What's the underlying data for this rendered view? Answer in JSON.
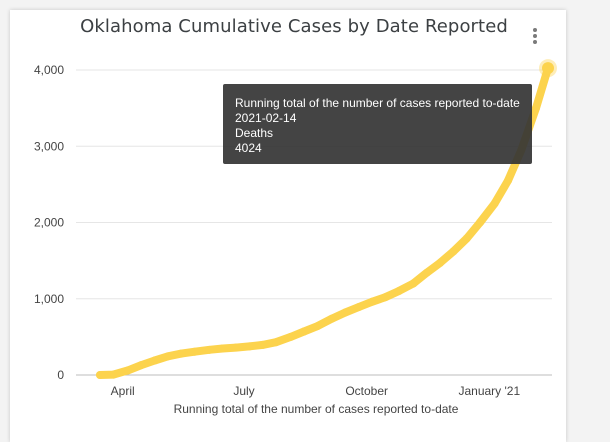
{
  "chart_data": {
    "type": "line",
    "title": "Oklahoma Cumulative Cases by Date Reported",
    "xlabel": "Running total of the number of cases reported to-date",
    "ylabel": "",
    "x_start": "2020-03-15",
    "x_end": "2021-02-14",
    "ylim": [
      0,
      4000
    ],
    "yticks": [
      0,
      1000,
      2000,
      3000,
      4000
    ],
    "ytick_labels": [
      "0",
      "1,000",
      "2,000",
      "3,000",
      "4,000"
    ],
    "xtick_dates": [
      "2020-04-01",
      "2020-07-01",
      "2020-10-01",
      "2021-01-01"
    ],
    "xtick_labels": [
      "April",
      "July",
      "October",
      "January '21"
    ],
    "grid": true,
    "line_color": "#fcd34d",
    "series": [
      {
        "name": "",
        "points": [
          [
            "2020-03-15",
            0
          ],
          [
            "2020-03-25",
            5
          ],
          [
            "2020-04-05",
            60
          ],
          [
            "2020-04-15",
            130
          ],
          [
            "2020-04-25",
            190
          ],
          [
            "2020-05-05",
            245
          ],
          [
            "2020-05-15",
            280
          ],
          [
            "2020-05-25",
            305
          ],
          [
            "2020-06-05",
            330
          ],
          [
            "2020-06-15",
            348
          ],
          [
            "2020-06-25",
            360
          ],
          [
            "2020-07-05",
            375
          ],
          [
            "2020-07-15",
            395
          ],
          [
            "2020-07-25",
            430
          ],
          [
            "2020-08-05",
            500
          ],
          [
            "2020-08-15",
            570
          ],
          [
            "2020-08-25",
            640
          ],
          [
            "2020-09-05",
            740
          ],
          [
            "2020-09-15",
            820
          ],
          [
            "2020-09-25",
            890
          ],
          [
            "2020-10-05",
            960
          ],
          [
            "2020-10-15",
            1020
          ],
          [
            "2020-10-25",
            1100
          ],
          [
            "2020-11-05",
            1200
          ],
          [
            "2020-11-15",
            1340
          ],
          [
            "2020-11-25",
            1470
          ],
          [
            "2020-12-05",
            1620
          ],
          [
            "2020-12-15",
            1790
          ],
          [
            "2020-12-25",
            2000
          ],
          [
            "2021-01-05",
            2250
          ],
          [
            "2021-01-15",
            2550
          ],
          [
            "2021-01-25",
            2950
          ],
          [
            "2021-02-05",
            3500
          ],
          [
            "2021-02-14",
            4024
          ]
        ]
      }
    ]
  },
  "tooltip": {
    "line1": "Running total of the number of cases reported to-date",
    "line2": "2021-02-14",
    "line3": "Deaths",
    "line4": "4024"
  }
}
